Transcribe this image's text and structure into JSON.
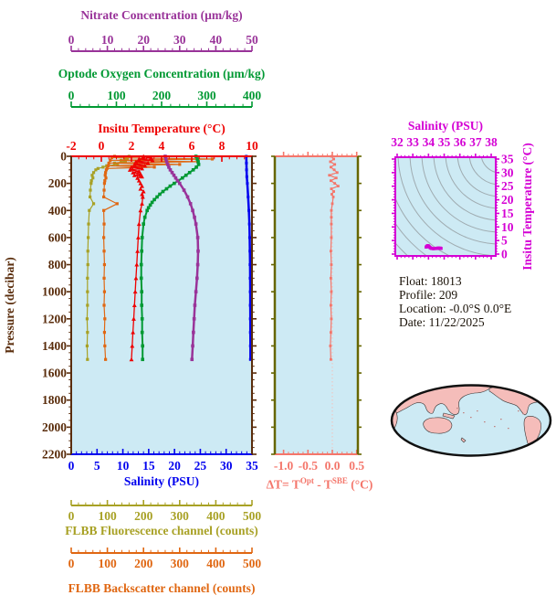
{
  "colors": {
    "nitrate": "#993399",
    "oxygen": "#009933",
    "temperature": "#EE0000",
    "pressure_axis": "#5A2D0C",
    "salinity": "#0000EE",
    "fluorescence": "#A8A125",
    "backscatter": "#E06712",
    "delta_t": "#F4766B",
    "delta_frame": "#666600",
    "ts_frame": "#D400D4",
    "plot_bg": "#CDEAF4",
    "contour": "#9FABB0",
    "map_land": "#F5BDBA",
    "map_outline": "#111111",
    "info_text": "#1A1208"
  },
  "top_axes": [
    {
      "title": "Nitrate Concentration (µm/kg)",
      "tick_labels": [
        "0",
        "10",
        "20",
        "30",
        "40",
        "50"
      ]
    },
    {
      "title": "Optode Oxygen Concentration (µm/kg)",
      "tick_labels": [
        "0",
        "100",
        "200",
        "300",
        "400"
      ]
    },
    {
      "title": "Insitu Temperature (°C)",
      "tick_labels": [
        "-2",
        "0",
        "2",
        "4",
        "6",
        "8",
        "10"
      ]
    }
  ],
  "main_plot": {
    "y_label": "Pressure (decibar)",
    "y_tick_labels": [
      "0",
      "200",
      "400",
      "600",
      "800",
      "1000",
      "1200",
      "1400",
      "1600",
      "1800",
      "2000",
      "2200"
    ],
    "x_label": "Salinity (PSU)",
    "x_tick_labels": [
      "0",
      "5",
      "10",
      "15",
      "20",
      "25",
      "30",
      "35"
    ]
  },
  "bottom_axes": [
    {
      "title": "FLBB Fluorescence channel (counts)",
      "tick_labels": [
        "0",
        "100",
        "200",
        "300",
        "400",
        "500"
      ]
    },
    {
      "title": "FLBB Backscatter channel (counts)",
      "tick_labels": [
        "0",
        "100",
        "200",
        "300",
        "400",
        "500"
      ]
    }
  ],
  "delta_plot_labels": {
    "tick_labels": [
      "-1.0",
      "-0.5",
      "0.0",
      "0.5"
    ],
    "title_prefix": "ΔT= T",
    "title_sup1": "Opt",
    "title_mid": " - T",
    "title_sup2": "SBE",
    "title_suffix": " (°C)"
  },
  "ts_plot_labels": {
    "title": "Salinity (PSU)",
    "x_tick_labels": [
      "32",
      "33",
      "34",
      "35",
      "36",
      "37",
      "38"
    ],
    "y_tick_labels": [
      "0",
      "5",
      "10",
      "15",
      "20",
      "25",
      "30",
      "35"
    ],
    "y_label": "Insitu Temperature (°C)"
  },
  "info": {
    "lines": [
      "Float:  18013",
      "Profile:  209",
      "Location:  -0.0°S   0.0°E",
      "Date:  11/22/2025"
    ]
  },
  "chart_data": {
    "type": "line",
    "title": "Argo float vertical profile plots",
    "y_axis": {
      "label": "Pressure (decibar)",
      "min": 0,
      "max": 2200,
      "tick_step": 200
    },
    "profiles": [
      {
        "name": "fluorescence",
        "axis_title": "FLBB Fluorescence channel (counts)",
        "scale_min": 0,
        "scale_max": 500,
        "color": "#A8A125",
        "marker": "square",
        "pressure": [
          0,
          10,
          20,
          30,
          40,
          50,
          60,
          70,
          80,
          90,
          100,
          120,
          140,
          160,
          180,
          200,
          250,
          300,
          350,
          400,
          500,
          600,
          700,
          800,
          900,
          1000,
          1100,
          1200,
          1300,
          1400,
          1500
        ],
        "values": [
          160,
          148,
          155,
          138,
          150,
          120,
          128,
          98,
          88,
          74,
          68,
          62,
          58,
          60,
          56,
          55,
          53,
          52,
          62,
          50,
          48,
          47,
          46,
          46,
          45,
          45,
          45,
          44,
          45,
          44,
          45
        ]
      },
      {
        "name": "backscatter",
        "axis_title": "FLBB Backscatter channel (counts)",
        "scale_min": 0,
        "scale_max": 500,
        "color": "#E06712",
        "marker": "square",
        "pressure": [
          0,
          10,
          20,
          30,
          40,
          50,
          60,
          70,
          80,
          90,
          100,
          120,
          140,
          160,
          180,
          200,
          250,
          300,
          350,
          400,
          500,
          600,
          700,
          800,
          900,
          1000,
          1100,
          1200,
          1300,
          1400,
          1500
        ],
        "values": [
          120,
          112,
          390,
          108,
          350,
          104,
          300,
          102,
          230,
          99,
          97,
          95,
          94,
          96,
          93,
          92,
          91,
          90,
          127,
          90,
          91,
          90,
          91,
          92,
          91,
          92,
          91,
          93,
          92,
          93,
          95
        ]
      },
      {
        "name": "temperature",
        "axis_title": "Insitu Temperature (°C)",
        "scale_min": -2,
        "scale_max": 10,
        "color": "#EE0000",
        "marker": "triangle",
        "pressure": [
          0,
          10,
          20,
          30,
          40,
          50,
          60,
          70,
          80,
          90,
          100,
          110,
          120,
          130,
          140,
          150,
          160,
          180,
          200,
          220,
          240,
          260,
          280,
          300,
          350,
          400,
          500,
          600,
          700,
          800,
          900,
          1000,
          1100,
          1200,
          1300,
          1400,
          1500
        ],
        "values": [
          2.8,
          3.3,
          2.5,
          3.4,
          2.3,
          3.1,
          2.2,
          2.9,
          2.0,
          2.7,
          1.9,
          2.5,
          2.1,
          2.6,
          2.2,
          2.7,
          2.4,
          2.5,
          2.6,
          2.7,
          2.6,
          2.8,
          2.7,
          2.75,
          2.7,
          2.6,
          2.5,
          2.45,
          2.4,
          2.35,
          2.3,
          2.25,
          2.2,
          2.15,
          2.1,
          2.05,
          2.0
        ]
      },
      {
        "name": "oxygen",
        "axis_title": "Optode Oxygen Concentration (µm/kg)",
        "scale_min": 0,
        "scale_max": 400,
        "color": "#009933",
        "marker": "square",
        "pressure": [
          0,
          20,
          40,
          60,
          80,
          100,
          120,
          140,
          160,
          180,
          200,
          220,
          240,
          260,
          280,
          300,
          320,
          340,
          360,
          380,
          400,
          450,
          500,
          600,
          700,
          800,
          900,
          1000,
          1100,
          1200,
          1300,
          1400,
          1500
        ],
        "values": [
          276,
          279,
          281,
          282,
          277,
          270,
          262,
          254,
          246,
          237,
          228,
          219,
          211,
          203,
          196,
          190,
          184,
          179,
          175,
          171,
          168,
          163,
          160,
          157,
          156,
          155,
          155,
          156,
          156,
          157,
          157,
          158,
          158
        ]
      },
      {
        "name": "nitrate",
        "axis_title": "Nitrate Concentration (µm/kg)",
        "scale_min": 0,
        "scale_max": 50,
        "color": "#993399",
        "marker": "square",
        "pressure": [
          0,
          20,
          40,
          60,
          80,
          100,
          120,
          140,
          160,
          180,
          200,
          250,
          300,
          350,
          400,
          450,
          500,
          600,
          700,
          800,
          900,
          1000,
          1100,
          1200,
          1300,
          1400,
          1500
        ],
        "values": [
          26,
          26.2,
          26.4,
          26.7,
          27,
          27.4,
          27.9,
          28.4,
          28.9,
          29.4,
          30,
          31.2,
          32.2,
          33,
          33.6,
          34.1,
          34.5,
          35,
          35.1,
          35,
          34.8,
          34.5,
          34.2,
          34,
          33.8,
          33.6,
          33.4
        ]
      },
      {
        "name": "salinity",
        "axis_title": "Salinity (PSU)",
        "scale_min": 0,
        "scale_max": 35,
        "color": "#0000EE",
        "marker": "square",
        "pressure": [
          0,
          50,
          100,
          150,
          200,
          300,
          400,
          500,
          600,
          700,
          800,
          900,
          1000,
          1100,
          1200,
          1300,
          1400,
          1500
        ],
        "values": [
          33.9,
          33.92,
          33.95,
          34.0,
          34.1,
          34.25,
          34.4,
          34.5,
          34.55,
          34.6,
          34.62,
          34.64,
          34.66,
          34.67,
          34.68,
          34.69,
          34.7,
          34.7
        ]
      }
    ],
    "delta_plot": {
      "name": "delta_t",
      "x_label": "ΔT= T^Opt - T^SBE (°C)",
      "xlim": [
        -1.0,
        0.5
      ],
      "pressure": [
        0,
        20,
        40,
        60,
        80,
        100,
        120,
        140,
        160,
        180,
        200,
        220,
        240,
        260,
        280,
        300,
        350,
        400,
        450,
        500,
        600,
        700,
        800,
        900,
        1000,
        1100,
        1200,
        1300,
        1400,
        1500
      ],
      "values": [
        -0.02,
        0.03,
        -0.04,
        0.05,
        -0.03,
        0.04,
        0.1,
        -0.06,
        0.08,
        -0.03,
        0.05,
        0.12,
        -0.02,
        0.03,
        -0.01,
        0.02,
        0.0,
        -0.02,
        -0.02,
        -0.02,
        -0.02,
        -0.03,
        -0.02,
        -0.03,
        -0.02,
        -0.03,
        -0.02,
        -0.03,
        -0.04,
        -0.03
      ]
    },
    "ts_plot": {
      "title": "Salinity (PSU)",
      "y_label": "Insitu Temperature (°C)",
      "xlim": [
        32,
        38
      ],
      "ylim": [
        0,
        35
      ],
      "salinity": [
        33.85,
        33.9,
        33.95,
        34.0,
        34.05,
        34.1,
        34.15,
        34.2,
        34.3,
        34.4,
        34.5,
        34.55,
        34.6,
        34.65,
        34.7,
        34.75,
        34.8
      ],
      "temperature": [
        2.6,
        2.9,
        3.1,
        3.0,
        2.7,
        2.4,
        2.2,
        2.1,
        2.0,
        2.05,
        2.1,
        2.15,
        2.2,
        2.2,
        2.15,
        2.2,
        2.1
      ]
    }
  }
}
